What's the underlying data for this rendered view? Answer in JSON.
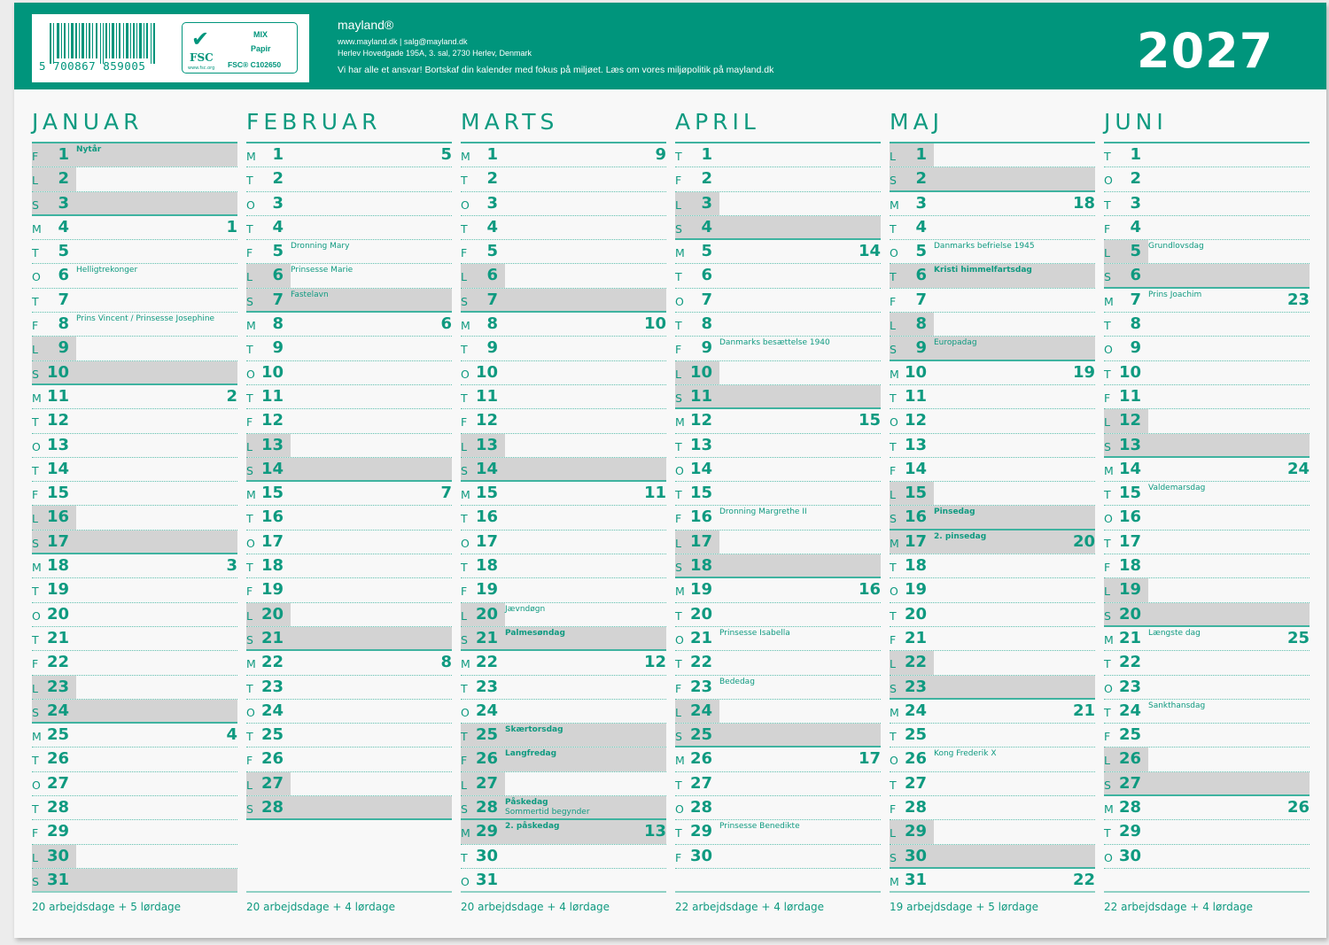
{
  "header": {
    "barcode_number": "5 700867 859005",
    "fsc": {
      "logo_text": "FSC",
      "logo_url_text": "www.fsc.org",
      "mix": "MIX",
      "paper": "Papir",
      "code": "FSC® C102650"
    },
    "brand": "mayland®",
    "contact": "www.mayland.dk  |  salg@mayland.dk",
    "address": "Herlev Hovedgade 195A, 3. sal, 2730 Herlev, Denmark",
    "slogan": "Vi har alle et ansvar! Bortskaf din kalender med fokus på miljøet. Læs om vores miljøpolitik på mayland.dk",
    "year": "2027",
    "accent_color": "#00957c",
    "shade_color": "#d3d3d3"
  },
  "months": [
    {
      "name": "JANUAR",
      "footer": "20 arbejdsdage + 5 lørdage",
      "days": [
        [
          "F",
          "1",
          "Nytår",
          "",
          "f",
          1
        ],
        [
          "L",
          "2",
          "",
          "",
          "h"
        ],
        [
          "S",
          "3",
          "",
          "",
          "f"
        ],
        [
          "M",
          "4",
          "",
          "1",
          ""
        ],
        [
          "T",
          "5"
        ],
        [
          "O",
          "6",
          "Helligtrekonger"
        ],
        [
          "T",
          "7"
        ],
        [
          "F",
          "8",
          "Prins Vincent / Prinsesse Josephine"
        ],
        [
          "L",
          "9",
          "",
          "",
          "h"
        ],
        [
          "S",
          "10",
          "",
          "",
          "f"
        ],
        [
          "M",
          "11",
          "",
          "2"
        ],
        [
          "T",
          "12"
        ],
        [
          "O",
          "13"
        ],
        [
          "T",
          "14"
        ],
        [
          "F",
          "15"
        ],
        [
          "L",
          "16",
          "",
          "",
          "h"
        ],
        [
          "S",
          "17",
          "",
          "",
          "f"
        ],
        [
          "M",
          "18",
          "",
          "3"
        ],
        [
          "T",
          "19"
        ],
        [
          "O",
          "20"
        ],
        [
          "T",
          "21"
        ],
        [
          "F",
          "22"
        ],
        [
          "L",
          "23",
          "",
          "",
          "h"
        ],
        [
          "S",
          "24",
          "",
          "",
          "f"
        ],
        [
          "M",
          "25",
          "",
          "4"
        ],
        [
          "T",
          "26"
        ],
        [
          "O",
          "27"
        ],
        [
          "T",
          "28"
        ],
        [
          "F",
          "29"
        ],
        [
          "L",
          "30",
          "",
          "",
          "h"
        ],
        [
          "S",
          "31",
          "",
          "",
          "f"
        ]
      ]
    },
    {
      "name": "FEBRUAR",
      "footer": "20 arbejdsdage + 4 lørdage",
      "days": [
        [
          "M",
          "1",
          "",
          "5"
        ],
        [
          "T",
          "2"
        ],
        [
          "O",
          "3"
        ],
        [
          "T",
          "4"
        ],
        [
          "F",
          "5",
          "Dronning Mary"
        ],
        [
          "L",
          "6",
          "Prinsesse Marie",
          "",
          "h"
        ],
        [
          "S",
          "7",
          "Fastelavn",
          "",
          "f"
        ],
        [
          "M",
          "8",
          "",
          "6"
        ],
        [
          "T",
          "9"
        ],
        [
          "O",
          "10"
        ],
        [
          "T",
          "11"
        ],
        [
          "F",
          "12"
        ],
        [
          "L",
          "13",
          "",
          "",
          "h"
        ],
        [
          "S",
          "14",
          "",
          "",
          "f"
        ],
        [
          "M",
          "15",
          "",
          "7"
        ],
        [
          "T",
          "16"
        ],
        [
          "O",
          "17"
        ],
        [
          "T",
          "18"
        ],
        [
          "F",
          "19"
        ],
        [
          "L",
          "20",
          "",
          "",
          "h"
        ],
        [
          "S",
          "21",
          "",
          "",
          "f"
        ],
        [
          "M",
          "22",
          "",
          "8"
        ],
        [
          "T",
          "23"
        ],
        [
          "O",
          "24"
        ],
        [
          "T",
          "25"
        ],
        [
          "F",
          "26"
        ],
        [
          "L",
          "27",
          "",
          "",
          "h"
        ],
        [
          "S",
          "28",
          "",
          "",
          "f"
        ]
      ]
    },
    {
      "name": "MARTS",
      "footer": "20 arbejdsdage + 4 lørdage",
      "days": [
        [
          "M",
          "1",
          "",
          "9"
        ],
        [
          "T",
          "2"
        ],
        [
          "O",
          "3"
        ],
        [
          "T",
          "4"
        ],
        [
          "F",
          "5"
        ],
        [
          "L",
          "6",
          "",
          "",
          "h"
        ],
        [
          "S",
          "7",
          "",
          "",
          "f"
        ],
        [
          "M",
          "8",
          "",
          "10"
        ],
        [
          "T",
          "9"
        ],
        [
          "O",
          "10"
        ],
        [
          "T",
          "11"
        ],
        [
          "F",
          "12"
        ],
        [
          "L",
          "13",
          "",
          "",
          "h"
        ],
        [
          "S",
          "14",
          "",
          "",
          "f"
        ],
        [
          "M",
          "15",
          "",
          "11"
        ],
        [
          "T",
          "16"
        ],
        [
          "O",
          "17"
        ],
        [
          "T",
          "18"
        ],
        [
          "F",
          "19"
        ],
        [
          "L",
          "20",
          "Jævndøgn",
          "",
          "h"
        ],
        [
          "S",
          "21",
          "Palmesøndag",
          "",
          "f",
          1
        ],
        [
          "M",
          "22",
          "",
          "12"
        ],
        [
          "T",
          "23"
        ],
        [
          "O",
          "24"
        ],
        [
          "T",
          "25",
          "Skærtorsdag",
          "",
          "f",
          1
        ],
        [
          "F",
          "26",
          "Langfredag",
          "",
          "f",
          1
        ],
        [
          "L",
          "27",
          "",
          "",
          "h"
        ],
        [
          "S",
          "28",
          "Påskedag",
          "",
          "f",
          1,
          "Sommertid begynder"
        ],
        [
          "M",
          "29",
          "2. påskedag",
          "13",
          "f",
          1
        ],
        [
          "T",
          "30"
        ],
        [
          "O",
          "31"
        ]
      ]
    },
    {
      "name": "APRIL",
      "footer": "22 arbejdsdage + 4 lørdage",
      "days": [
        [
          "T",
          "1"
        ],
        [
          "F",
          "2"
        ],
        [
          "L",
          "3",
          "",
          "",
          "h"
        ],
        [
          "S",
          "4",
          "",
          "",
          "f"
        ],
        [
          "M",
          "5",
          "",
          "14"
        ],
        [
          "T",
          "6"
        ],
        [
          "O",
          "7"
        ],
        [
          "T",
          "8"
        ],
        [
          "F",
          "9",
          "Danmarks besættelse 1940"
        ],
        [
          "L",
          "10",
          "",
          "",
          "h"
        ],
        [
          "S",
          "11",
          "",
          "",
          "f"
        ],
        [
          "M",
          "12",
          "",
          "15"
        ],
        [
          "T",
          "13"
        ],
        [
          "O",
          "14"
        ],
        [
          "T",
          "15"
        ],
        [
          "F",
          "16",
          "Dronning Margrethe II"
        ],
        [
          "L",
          "17",
          "",
          "",
          "h"
        ],
        [
          "S",
          "18",
          "",
          "",
          "f"
        ],
        [
          "M",
          "19",
          "",
          "16"
        ],
        [
          "T",
          "20"
        ],
        [
          "O",
          "21",
          "Prinsesse Isabella"
        ],
        [
          "T",
          "22"
        ],
        [
          "F",
          "23",
          "Bededag"
        ],
        [
          "L",
          "24",
          "",
          "",
          "h"
        ],
        [
          "S",
          "25",
          "",
          "",
          "f"
        ],
        [
          "M",
          "26",
          "",
          "17"
        ],
        [
          "T",
          "27"
        ],
        [
          "O",
          "28"
        ],
        [
          "T",
          "29",
          "Prinsesse Benedikte"
        ],
        [
          "F",
          "30"
        ]
      ]
    },
    {
      "name": "MAJ",
      "footer": "19 arbejdsdage + 5 lørdage",
      "days": [
        [
          "L",
          "1",
          "",
          "",
          "h"
        ],
        [
          "S",
          "2",
          "",
          "",
          "f"
        ],
        [
          "M",
          "3",
          "",
          "18"
        ],
        [
          "T",
          "4"
        ],
        [
          "O",
          "5",
          "Danmarks befrielse 1945"
        ],
        [
          "T",
          "6",
          "Kristi himmelfartsdag",
          "",
          "f",
          1
        ],
        [
          "F",
          "7"
        ],
        [
          "L",
          "8",
          "",
          "",
          "h"
        ],
        [
          "S",
          "9",
          "Europadag",
          "",
          "f"
        ],
        [
          "M",
          "10",
          "",
          "19"
        ],
        [
          "T",
          "11"
        ],
        [
          "O",
          "12"
        ],
        [
          "T",
          "13"
        ],
        [
          "F",
          "14"
        ],
        [
          "L",
          "15",
          "",
          "",
          "h"
        ],
        [
          "S",
          "16",
          "Pinsedag",
          "",
          "f",
          1
        ],
        [
          "M",
          "17",
          "2. pinsedag",
          "20",
          "f",
          1
        ],
        [
          "T",
          "18"
        ],
        [
          "O",
          "19"
        ],
        [
          "T",
          "20"
        ],
        [
          "F",
          "21"
        ],
        [
          "L",
          "22",
          "",
          "",
          "h"
        ],
        [
          "S",
          "23",
          "",
          "",
          "f"
        ],
        [
          "M",
          "24",
          "",
          "21"
        ],
        [
          "T",
          "25"
        ],
        [
          "O",
          "26",
          "Kong Frederik X"
        ],
        [
          "T",
          "27"
        ],
        [
          "F",
          "28"
        ],
        [
          "L",
          "29",
          "",
          "",
          "h"
        ],
        [
          "S",
          "30",
          "",
          "",
          "f"
        ],
        [
          "M",
          "31",
          "",
          "22"
        ]
      ]
    },
    {
      "name": "JUNI",
      "footer": "22 arbejdsdage + 4 lørdage",
      "days": [
        [
          "T",
          "1"
        ],
        [
          "O",
          "2"
        ],
        [
          "T",
          "3"
        ],
        [
          "F",
          "4"
        ],
        [
          "L",
          "5",
          "Grundlovsdag",
          "",
          "h"
        ],
        [
          "S",
          "6",
          "",
          "",
          "f"
        ],
        [
          "M",
          "7",
          "Prins Joachim",
          "23"
        ],
        [
          "T",
          "8"
        ],
        [
          "O",
          "9"
        ],
        [
          "T",
          "10"
        ],
        [
          "F",
          "11"
        ],
        [
          "L",
          "12",
          "",
          "",
          "h"
        ],
        [
          "S",
          "13",
          "",
          "",
          "f"
        ],
        [
          "M",
          "14",
          "",
          "24"
        ],
        [
          "T",
          "15",
          "Valdemarsdag"
        ],
        [
          "O",
          "16"
        ],
        [
          "T",
          "17"
        ],
        [
          "F",
          "18"
        ],
        [
          "L",
          "19",
          "",
          "",
          "h"
        ],
        [
          "S",
          "20",
          "",
          "",
          "f"
        ],
        [
          "M",
          "21",
          "Længste dag",
          "25"
        ],
        [
          "T",
          "22"
        ],
        [
          "O",
          "23"
        ],
        [
          "T",
          "24",
          "Sankthansdag"
        ],
        [
          "F",
          "25"
        ],
        [
          "L",
          "26",
          "",
          "",
          "h"
        ],
        [
          "S",
          "27",
          "",
          "",
          "f"
        ],
        [
          "M",
          "28",
          "",
          "26"
        ],
        [
          "T",
          "29"
        ],
        [
          "O",
          "30"
        ]
      ]
    }
  ]
}
